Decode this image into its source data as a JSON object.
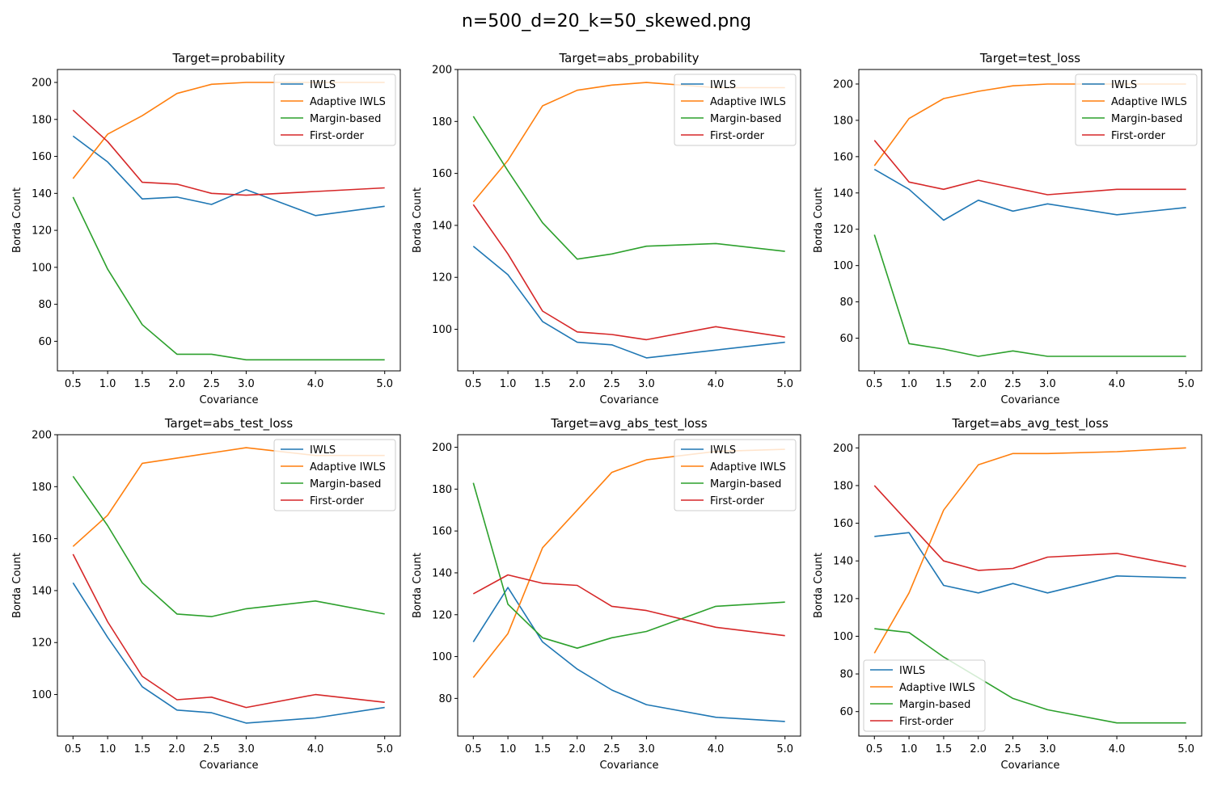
{
  "figure_title": "n=500_d=20_k=50_skewed.png",
  "legend_labels": [
    "IWLS",
    "Adaptive IWLS",
    "Margin-based",
    "First-order"
  ],
  "series_colors": {
    "IWLS": "#1f77b4",
    "Adaptive IWLS": "#ff7f0e",
    "Margin-based": "#2ca02c",
    "First-order": "#d62728"
  },
  "chart_data": [
    {
      "type": "line",
      "title": "Target=probability",
      "xlabel": "Covariance",
      "ylabel": "Borda Count",
      "x": [
        0.5,
        1.0,
        1.5,
        2.0,
        2.5,
        3.0,
        4.0,
        5.0
      ],
      "x_ticks": [
        "0.5",
        "1.0",
        "1.5",
        "2.0",
        "2.5",
        "3.0",
        "4.0",
        "5.0"
      ],
      "ylim": [
        44,
        207
      ],
      "y_ticks": [
        60,
        80,
        100,
        120,
        140,
        160,
        180,
        200
      ],
      "legend_position": "top-right",
      "grid": false,
      "series": [
        {
          "name": "IWLS",
          "values": [
            171,
            157,
            137,
            138,
            134,
            142,
            128,
            133
          ]
        },
        {
          "name": "Adaptive IWLS",
          "values": [
            148,
            172,
            182,
            194,
            199,
            200,
            200,
            200
          ]
        },
        {
          "name": "Margin-based",
          "values": [
            138,
            99,
            69,
            53,
            53,
            50,
            50,
            50
          ]
        },
        {
          "name": "First-order",
          "values": [
            185,
            168,
            146,
            145,
            140,
            139,
            141,
            143
          ]
        }
      ]
    },
    {
      "type": "line",
      "title": "Target=abs_probability",
      "xlabel": "Covariance",
      "ylabel": "Borda Count",
      "x": [
        0.5,
        1.0,
        1.5,
        2.0,
        2.5,
        3.0,
        4.0,
        5.0
      ],
      "x_ticks": [
        "0.5",
        "1.0",
        "1.5",
        "2.0",
        "2.5",
        "3.0",
        "4.0",
        "5.0"
      ],
      "ylim": [
        84,
        200
      ],
      "y_ticks": [
        100,
        120,
        140,
        160,
        180,
        200
      ],
      "legend_position": "top-right",
      "grid": false,
      "series": [
        {
          "name": "IWLS",
          "values": [
            132,
            121,
            103,
            95,
            94,
            89,
            92,
            95
          ]
        },
        {
          "name": "Adaptive IWLS",
          "values": [
            149,
            165,
            186,
            192,
            194,
            195,
            193,
            193
          ]
        },
        {
          "name": "Margin-based",
          "values": [
            182,
            161,
            141,
            127,
            129,
            132,
            133,
            130
          ]
        },
        {
          "name": "First-order",
          "values": [
            148,
            129,
            107,
            99,
            98,
            96,
            101,
            97
          ]
        }
      ]
    },
    {
      "type": "line",
      "title": "Target=test_loss",
      "xlabel": "Covariance",
      "ylabel": "Borda Count",
      "x": [
        0.5,
        1.0,
        1.5,
        2.0,
        2.5,
        3.0,
        4.0,
        5.0
      ],
      "x_ticks": [
        "0.5",
        "1.0",
        "1.5",
        "2.0",
        "2.5",
        "3.0",
        "4.0",
        "5.0"
      ],
      "ylim": [
        42,
        208
      ],
      "y_ticks": [
        60,
        80,
        100,
        120,
        140,
        160,
        180,
        200
      ],
      "legend_position": "top-right",
      "grid": false,
      "series": [
        {
          "name": "IWLS",
          "values": [
            153,
            142,
            125,
            136,
            130,
            134,
            128,
            132
          ]
        },
        {
          "name": "Adaptive IWLS",
          "values": [
            155,
            181,
            192,
            196,
            199,
            200,
            200,
            200
          ]
        },
        {
          "name": "Margin-based",
          "values": [
            117,
            57,
            54,
            50,
            53,
            50,
            50,
            50
          ]
        },
        {
          "name": "First-order",
          "values": [
            169,
            146,
            142,
            147,
            143,
            139,
            142,
            142
          ]
        }
      ]
    },
    {
      "type": "line",
      "title": "Target=abs_test_loss",
      "xlabel": "Covariance",
      "ylabel": "Borda Count",
      "x": [
        0.5,
        1.0,
        1.5,
        2.0,
        2.5,
        3.0,
        4.0,
        5.0
      ],
      "x_ticks": [
        "0.5",
        "1.0",
        "1.5",
        "2.0",
        "2.5",
        "3.0",
        "4.0",
        "5.0"
      ],
      "ylim": [
        84,
        200
      ],
      "y_ticks": [
        100,
        120,
        140,
        160,
        180,
        200
      ],
      "legend_position": "top-right",
      "grid": false,
      "series": [
        {
          "name": "IWLS",
          "values": [
            143,
            122,
            103,
            94,
            93,
            89,
            91,
            95
          ]
        },
        {
          "name": "Adaptive IWLS",
          "values": [
            157,
            169,
            189,
            191,
            193,
            195,
            192,
            192
          ]
        },
        {
          "name": "Margin-based",
          "values": [
            184,
            165,
            143,
            131,
            130,
            133,
            136,
            131
          ]
        },
        {
          "name": "First-order",
          "values": [
            154,
            128,
            107,
            98,
            99,
            95,
            100,
            97
          ]
        }
      ]
    },
    {
      "type": "line",
      "title": "Target=avg_abs_test_loss",
      "xlabel": "Covariance",
      "ylabel": "Borda Count",
      "x": [
        0.5,
        1.0,
        1.5,
        2.0,
        2.5,
        3.0,
        4.0,
        5.0
      ],
      "x_ticks": [
        "0.5",
        "1.0",
        "1.5",
        "2.0",
        "2.5",
        "3.0",
        "4.0",
        "5.0"
      ],
      "ylim": [
        62,
        206
      ],
      "y_ticks": [
        80,
        100,
        120,
        140,
        160,
        180,
        200
      ],
      "legend_position": "top-right",
      "grid": false,
      "series": [
        {
          "name": "IWLS",
          "values": [
            107,
            133,
            107,
            94,
            84,
            77,
            71,
            69
          ]
        },
        {
          "name": "Adaptive IWLS",
          "values": [
            90,
            111,
            152,
            170,
            188,
            194,
            198,
            199
          ]
        },
        {
          "name": "Margin-based",
          "values": [
            183,
            125,
            109,
            104,
            109,
            112,
            124,
            126
          ]
        },
        {
          "name": "First-order",
          "values": [
            130,
            139,
            135,
            134,
            124,
            122,
            114,
            110
          ]
        }
      ]
    },
    {
      "type": "line",
      "title": "Target=abs_avg_test_loss",
      "xlabel": "Covariance",
      "ylabel": "Borda Count",
      "x": [
        0.5,
        1.0,
        1.5,
        2.0,
        2.5,
        3.0,
        4.0,
        5.0
      ],
      "x_ticks": [
        "0.5",
        "1.0",
        "1.5",
        "2.0",
        "2.5",
        "3.0",
        "4.0",
        "5.0"
      ],
      "ylim": [
        47,
        207
      ],
      "y_ticks": [
        60,
        80,
        100,
        120,
        140,
        160,
        180,
        200
      ],
      "legend_position": "lower-left",
      "grid": false,
      "series": [
        {
          "name": "IWLS",
          "values": [
            153,
            155,
            127,
            123,
            128,
            123,
            132,
            131
          ]
        },
        {
          "name": "Adaptive IWLS",
          "values": [
            91,
            123,
            167,
            191,
            197,
            197,
            198,
            200
          ]
        },
        {
          "name": "Margin-based",
          "values": [
            104,
            102,
            89,
            78,
            67,
            61,
            54,
            54
          ]
        },
        {
          "name": "First-order",
          "values": [
            180,
            160,
            140,
            135,
            136,
            142,
            144,
            137
          ]
        }
      ]
    }
  ]
}
